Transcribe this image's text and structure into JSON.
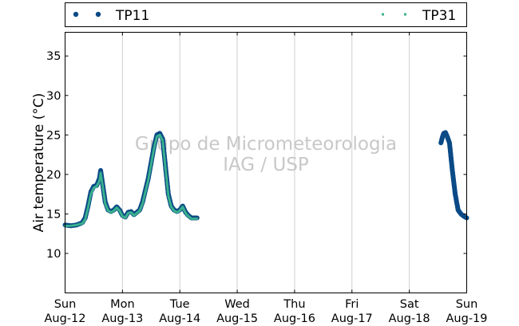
{
  "chart_data": {
    "type": "scatter",
    "title": "",
    "xlabel": "",
    "ylabel": "Air temperature (°C)",
    "ylim": [
      5,
      38
    ],
    "yticks": [
      10,
      15,
      20,
      25,
      30,
      35
    ],
    "xlim_days": [
      0,
      7
    ],
    "grid": "vertical",
    "legend": {
      "placement": "top",
      "entries": [
        "TP11",
        "TP31"
      ]
    },
    "watermark": [
      "Grupo de Micrometeorologia",
      "IAG / USP"
    ],
    "x_ticks": [
      {
        "day": "Sun",
        "date": "Aug-12"
      },
      {
        "day": "Mon",
        "date": "Aug-13"
      },
      {
        "day": "Tue",
        "date": "Aug-14"
      },
      {
        "day": "Wed",
        "date": "Aug-15"
      },
      {
        "day": "Thu",
        "date": "Aug-16"
      },
      {
        "day": "Fri",
        "date": "Aug-17"
      },
      {
        "day": "Sat",
        "date": "Aug-18"
      },
      {
        "day": "Sun",
        "date": "Aug-19"
      }
    ],
    "series": [
      {
        "name": "TP11",
        "color": "#0b4a86",
        "marker": "circle",
        "segments": [
          [
            [
              0.0,
              13.6
            ],
            [
              0.1,
              13.5
            ],
            [
              0.2,
              13.6
            ],
            [
              0.3,
              13.9
            ],
            [
              0.35,
              14.5
            ],
            [
              0.4,
              16.0
            ],
            [
              0.45,
              17.8
            ],
            [
              0.5,
              18.5
            ],
            [
              0.55,
              18.6
            ],
            [
              0.6,
              19.5
            ],
            [
              0.62,
              20.5
            ],
            [
              0.65,
              19.0
            ],
            [
              0.7,
              16.5
            ],
            [
              0.75,
              15.5
            ],
            [
              0.8,
              15.3
            ],
            [
              0.85,
              15.5
            ],
            [
              0.9,
              15.9
            ],
            [
              0.95,
              15.5
            ],
            [
              1.0,
              14.8
            ],
            [
              1.05,
              14.6
            ],
            [
              1.1,
              15.2
            ],
            [
              1.15,
              15.3
            ],
            [
              1.2,
              14.9
            ],
            [
              1.3,
              15.5
            ],
            [
              1.35,
              16.5
            ],
            [
              1.45,
              19.5
            ],
            [
              1.5,
              21.5
            ],
            [
              1.55,
              23.5
            ],
            [
              1.6,
              25.0
            ],
            [
              1.65,
              25.2
            ],
            [
              1.7,
              24.5
            ],
            [
              1.75,
              21.0
            ],
            [
              1.8,
              17.5
            ],
            [
              1.85,
              16.0
            ],
            [
              1.9,
              15.5
            ],
            [
              1.95,
              15.3
            ],
            [
              2.0,
              15.5
            ],
            [
              2.05,
              16.0
            ],
            [
              2.1,
              15.2
            ],
            [
              2.15,
              14.8
            ],
            [
              2.2,
              14.5
            ],
            [
              2.3,
              14.5
            ]
          ],
          [
            [
              6.55,
              24.0
            ],
            [
              6.58,
              24.8
            ],
            [
              6.6,
              25.2
            ],
            [
              6.63,
              25.3
            ],
            [
              6.66,
              24.8
            ],
            [
              6.7,
              24.0
            ],
            [
              6.75,
              20.5
            ],
            [
              6.8,
              17.5
            ],
            [
              6.85,
              15.5
            ],
            [
              6.9,
              15.0
            ],
            [
              6.95,
              14.7
            ],
            [
              7.0,
              14.5
            ]
          ]
        ]
      },
      {
        "name": "TP31",
        "color": "#3bb08e",
        "marker": "square",
        "segments": [
          [
            [
              0.0,
              13.5
            ],
            [
              0.1,
              13.5
            ],
            [
              0.2,
              13.6
            ],
            [
              0.3,
              13.8
            ],
            [
              0.35,
              14.3
            ],
            [
              0.4,
              15.8
            ],
            [
              0.45,
              17.5
            ],
            [
              0.5,
              18.3
            ],
            [
              0.55,
              18.5
            ],
            [
              0.6,
              19.2
            ],
            [
              0.62,
              20.2
            ],
            [
              0.65,
              18.8
            ],
            [
              0.7,
              16.3
            ],
            [
              0.75,
              15.4
            ],
            [
              0.8,
              15.2
            ],
            [
              0.85,
              15.4
            ],
            [
              0.9,
              15.8
            ],
            [
              0.95,
              15.4
            ],
            [
              1.0,
              14.7
            ],
            [
              1.05,
              14.5
            ],
            [
              1.1,
              15.1
            ],
            [
              1.15,
              15.2
            ],
            [
              1.2,
              14.8
            ],
            [
              1.3,
              15.4
            ],
            [
              1.35,
              16.3
            ],
            [
              1.45,
              19.3
            ],
            [
              1.5,
              21.3
            ],
            [
              1.55,
              23.3
            ],
            [
              1.6,
              24.8
            ],
            [
              1.65,
              25.0
            ],
            [
              1.7,
              24.3
            ],
            [
              1.75,
              20.8
            ],
            [
              1.8,
              17.3
            ],
            [
              1.85,
              15.9
            ],
            [
              1.9,
              15.4
            ],
            [
              1.95,
              15.2
            ],
            [
              2.0,
              15.4
            ],
            [
              2.05,
              15.9
            ],
            [
              2.1,
              15.1
            ],
            [
              2.15,
              14.7
            ],
            [
              2.2,
              14.4
            ],
            [
              2.3,
              14.4
            ]
          ]
        ]
      }
    ]
  }
}
